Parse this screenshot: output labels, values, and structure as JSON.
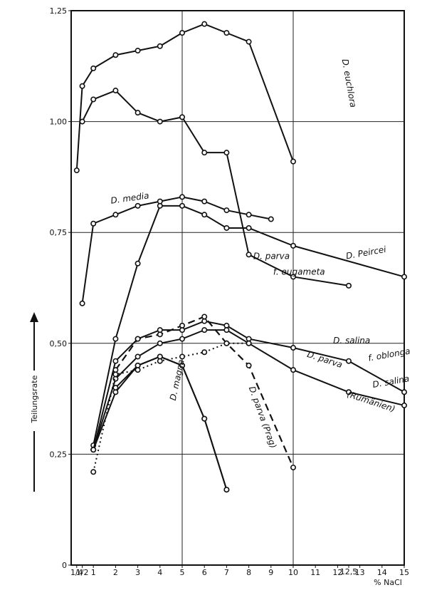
{
  "chart_data": {
    "type": "line",
    "title": "",
    "xlabel": "% NaCl",
    "ylabel": "Teilungsrate",
    "xlim": [
      0,
      15
    ],
    "ylim": [
      0,
      1.25
    ],
    "grid": true,
    "x_tick_labels": [
      "1/4",
      "1/2",
      "1",
      "2",
      "3",
      "4",
      "5",
      "6",
      "7",
      "8",
      "9",
      "10",
      "11",
      "12",
      "12,5",
      "13",
      "14",
      "15"
    ],
    "y_tick_labels": [
      "0",
      "0,25",
      "0,50",
      "0,75",
      "1,00",
      "1,25"
    ],
    "series": [
      {
        "name": "D. euchlora",
        "style": "solid",
        "x": [
          0.25,
          0.5,
          1,
          2,
          3,
          4,
          5,
          6,
          7,
          8,
          10
        ],
        "y": [
          0.89,
          1.08,
          1.12,
          1.15,
          1.16,
          1.17,
          1.2,
          1.22,
          1.2,
          1.18,
          0.91
        ]
      },
      {
        "name": "",
        "style": "solid",
        "x": [
          0.5,
          1,
          2,
          3,
          4,
          5,
          6,
          7,
          8,
          10,
          12.5
        ],
        "y": [
          1.0,
          1.05,
          1.07,
          1.02,
          1.0,
          1.01,
          0.93,
          0.93,
          0.7,
          0.65,
          0.63
        ]
      },
      {
        "name": "D. media",
        "style": "solid",
        "x": [
          0.5,
          1,
          2,
          3,
          4,
          5,
          6,
          7,
          8,
          9
        ],
        "y": [
          0.59,
          0.77,
          0.79,
          0.81,
          0.82,
          0.83,
          0.82,
          0.8,
          0.79,
          0.78
        ]
      },
      {
        "name": "D. Peircei",
        "style": "solid",
        "x": [
          1,
          2,
          3,
          4,
          5,
          6,
          7,
          8,
          10,
          15
        ],
        "y": [
          0.27,
          0.51,
          0.68,
          0.81,
          0.81,
          0.79,
          0.76,
          0.76,
          0.72,
          0.65
        ]
      },
      {
        "name": "D. salina f. oblonga",
        "style": "solid",
        "x": [
          1,
          2,
          3,
          4,
          5,
          6,
          7,
          8,
          10,
          12.5,
          15
        ],
        "y": [
          0.26,
          0.46,
          0.51,
          0.53,
          0.53,
          0.55,
          0.54,
          0.51,
          0.49,
          0.46,
          0.39
        ]
      },
      {
        "name": "D. salina",
        "style": "solid",
        "x": [
          1,
          2,
          3,
          4,
          5,
          6,
          7,
          8,
          10,
          12.5,
          15
        ],
        "y": [
          0.26,
          0.42,
          0.47,
          0.5,
          0.51,
          0.53,
          0.53,
          0.5,
          0.44,
          0.39,
          0.36
        ]
      },
      {
        "name": "D. parva (Rumänien)",
        "style": "solid",
        "x": [
          1,
          2,
          3,
          4,
          5,
          6,
          7,
          8
        ],
        "y": [
          0.26,
          0.39,
          0.45,
          0.47,
          0.45,
          0.33,
          0.17,
          null
        ]
      },
      {
        "name": "D. magna",
        "style": "solid",
        "x": [
          2,
          3,
          4,
          5,
          6,
          7
        ],
        "y": [
          0.4,
          0.45,
          0.47,
          0.45,
          0.33,
          0.17
        ]
      },
      {
        "name": "D. parva (Prag)",
        "style": "dashed",
        "x": [
          2,
          3,
          4,
          5,
          6,
          7,
          8,
          10
        ],
        "y": [
          0.44,
          0.51,
          0.52,
          0.54,
          0.56,
          0.5,
          0.45,
          0.22
        ]
      },
      {
        "name": "",
        "style": "dotted",
        "x": [
          1,
          2,
          3,
          4,
          5,
          6,
          7,
          8
        ],
        "y": [
          0.21,
          0.43,
          0.44,
          0.46,
          0.47,
          0.48,
          0.5,
          0.5
        ]
      }
    ],
    "labels": [
      {
        "text": "D. euchlora",
        "x": 12.2,
        "y": 1.14,
        "rotate": 80
      },
      {
        "text": "D. media",
        "x": 1.8,
        "y": 0.815,
        "rotate": -8
      },
      {
        "text": "D. parva",
        "x": 8.2,
        "y": 0.69,
        "rotate": 0
      },
      {
        "text": "f. eugameta",
        "x": 9.1,
        "y": 0.655,
        "rotate": 0
      },
      {
        "text": "D. Peircei",
        "x": 12.4,
        "y": 0.69,
        "rotate": -10
      },
      {
        "text": "D. salina",
        "x": 11.8,
        "y": 0.5,
        "rotate": 0
      },
      {
        "text": "f. oblonga",
        "x": 13.4,
        "y": 0.46,
        "rotate": -10
      },
      {
        "text": "D. parva",
        "x": 10.6,
        "y": 0.47,
        "rotate": 18
      },
      {
        "text": "(Rumänien)",
        "x": 12.4,
        "y": 0.38,
        "rotate": 18
      },
      {
        "text": "D. salina",
        "x": 13.6,
        "y": 0.4,
        "rotate": -10
      },
      {
        "text": "D. magna",
        "x": 4.7,
        "y": 0.37,
        "rotate": -78
      },
      {
        "text": "D. parva (Prag)",
        "x": 8.0,
        "y": 0.4,
        "rotate": 70
      }
    ]
  }
}
